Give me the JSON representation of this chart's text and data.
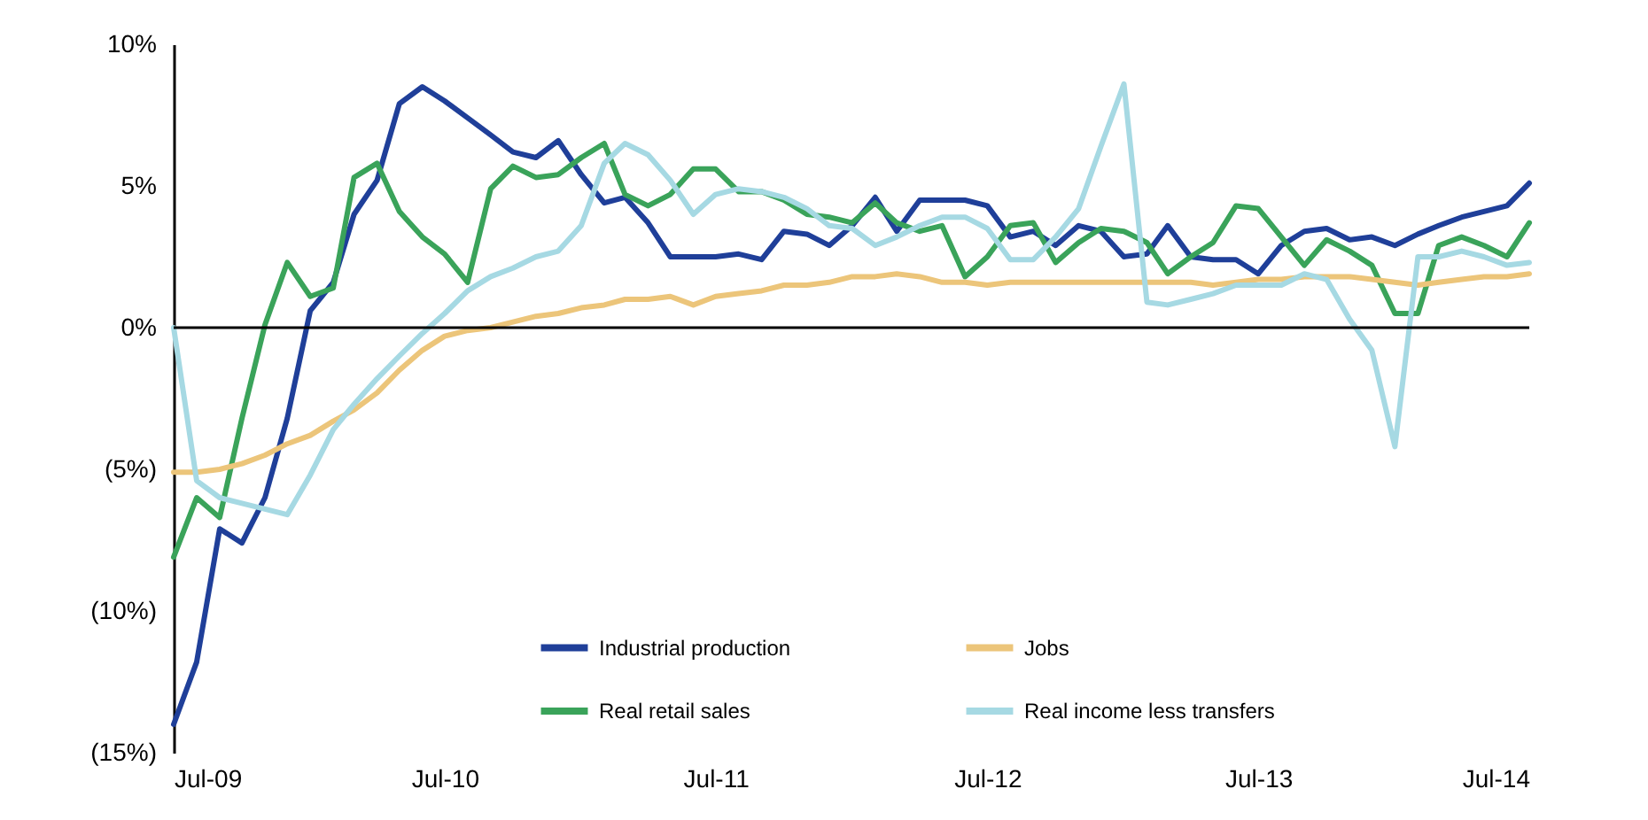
{
  "chart_data": {
    "type": "line",
    "x": [
      "2009-07",
      "2009-08",
      "2009-09",
      "2009-10",
      "2009-11",
      "2009-12",
      "2010-01",
      "2010-02",
      "2010-03",
      "2010-04",
      "2010-05",
      "2010-06",
      "2010-07",
      "2010-08",
      "2010-09",
      "2010-10",
      "2010-11",
      "2010-12",
      "2011-01",
      "2011-02",
      "2011-03",
      "2011-04",
      "2011-05",
      "2011-06",
      "2011-07",
      "2011-08",
      "2011-09",
      "2011-10",
      "2011-11",
      "2011-12",
      "2012-01",
      "2012-02",
      "2012-03",
      "2012-04",
      "2012-05",
      "2012-06",
      "2012-07",
      "2012-08",
      "2012-09",
      "2012-10",
      "2012-11",
      "2012-12",
      "2013-01",
      "2013-02",
      "2013-03",
      "2013-04",
      "2013-05",
      "2013-06",
      "2013-07",
      "2013-08",
      "2013-09",
      "2013-10",
      "2013-11",
      "2013-12",
      "2014-01",
      "2014-02",
      "2014-03",
      "2014-04",
      "2014-05",
      "2014-06",
      "2014-07"
    ],
    "series": [
      {
        "name": "Industrial production",
        "color": "#1f3f99",
        "values": [
          -14.0,
          -11.8,
          -7.1,
          -7.6,
          -6.0,
          -3.2,
          0.6,
          1.6,
          4.0,
          5.2,
          7.9,
          8.5,
          8.0,
          7.4,
          6.8,
          6.2,
          6.0,
          6.6,
          5.4,
          4.4,
          4.6,
          3.7,
          2.5,
          2.5,
          2.5,
          2.6,
          2.4,
          3.4,
          3.3,
          2.9,
          3.6,
          4.6,
          3.4,
          4.5,
          4.5,
          4.5,
          4.3,
          3.2,
          3.4,
          2.9,
          3.6,
          3.4,
          2.5,
          2.6,
          3.6,
          2.5,
          2.4,
          2.4,
          1.9,
          2.9,
          3.4,
          3.5,
          3.1,
          3.2,
          2.9,
          3.3,
          3.6,
          3.9,
          4.1,
          4.3,
          5.1
        ]
      },
      {
        "name": "Real retail sales",
        "color": "#3aa35a",
        "values": [
          -8.1,
          -6.0,
          -6.7,
          -3.2,
          0.1,
          2.3,
          1.1,
          1.4,
          5.3,
          5.8,
          4.1,
          3.2,
          2.6,
          1.6,
          4.9,
          5.7,
          5.3,
          5.4,
          6.0,
          6.5,
          4.7,
          4.3,
          4.7,
          5.6,
          5.6,
          4.8,
          4.8,
          4.5,
          4.0,
          3.9,
          3.7,
          4.4,
          3.7,
          3.4,
          3.6,
          1.8,
          2.5,
          3.6,
          3.7,
          2.3,
          3.0,
          3.5,
          3.4,
          3.0,
          1.9,
          2.5,
          3.0,
          4.3,
          4.2,
          3.2,
          2.2,
          3.1,
          2.7,
          2.2,
          0.5,
          0.5,
          2.9,
          3.2,
          2.9,
          2.5,
          3.7
        ]
      },
      {
        "name": "Jobs",
        "color": "#ecc57a",
        "values": [
          -5.1,
          -5.1,
          -5.0,
          -4.8,
          -4.5,
          -4.1,
          -3.8,
          -3.3,
          -2.9,
          -2.3,
          -1.5,
          -0.8,
          -0.3,
          -0.1,
          0.0,
          0.2,
          0.4,
          0.5,
          0.7,
          0.8,
          1.0,
          1.0,
          1.1,
          0.8,
          1.1,
          1.2,
          1.3,
          1.5,
          1.5,
          1.6,
          1.8,
          1.8,
          1.9,
          1.8,
          1.6,
          1.6,
          1.5,
          1.6,
          1.6,
          1.6,
          1.6,
          1.6,
          1.6,
          1.6,
          1.6,
          1.6,
          1.5,
          1.6,
          1.7,
          1.7,
          1.8,
          1.8,
          1.8,
          1.7,
          1.6,
          1.5,
          1.6,
          1.7,
          1.8,
          1.8,
          1.9
        ]
      },
      {
        "name": "Real income less transfers",
        "color": "#a6d9e3",
        "values": [
          0.0,
          -5.4,
          -6.0,
          -6.2,
          -6.4,
          -6.6,
          -5.2,
          -3.6,
          -2.7,
          -1.8,
          -1.0,
          -0.2,
          0.5,
          1.3,
          1.8,
          2.1,
          2.5,
          2.7,
          3.6,
          5.8,
          6.5,
          6.1,
          5.2,
          4.0,
          4.7,
          4.9,
          4.8,
          4.6,
          4.2,
          3.6,
          3.5,
          2.9,
          3.2,
          3.6,
          3.9,
          3.9,
          3.5,
          2.4,
          2.4,
          3.2,
          4.2,
          6.4,
          8.6,
          0.9,
          0.8,
          1.0,
          1.2,
          1.5,
          1.5,
          1.5,
          1.9,
          1.7,
          0.3,
          -0.8,
          -4.2,
          2.5,
          2.5,
          2.7,
          2.5,
          2.2,
          2.3
        ]
      }
    ],
    "xlim": [
      "2009-07",
      "2014-07"
    ],
    "xticks": [
      {
        "value": "2009-07",
        "label": "Jul-09"
      },
      {
        "value": "2010-07",
        "label": "Jul-10"
      },
      {
        "value": "2011-07",
        "label": "Jul-11"
      },
      {
        "value": "2012-07",
        "label": "Jul-12"
      },
      {
        "value": "2013-07",
        "label": "Jul-13"
      },
      {
        "value": "2014-07",
        "label": "Jul-14"
      }
    ],
    "ylim": [
      -15,
      10
    ],
    "yticks": [
      {
        "value": -15,
        "label": "(15%)"
      },
      {
        "value": -10,
        "label": "(10%)"
      },
      {
        "value": -5,
        "label": "(5%)"
      },
      {
        "value": 0,
        "label": "0%"
      },
      {
        "value": 5,
        "label": "5%"
      },
      {
        "value": 10,
        "label": "10%"
      }
    ],
    "ref_lines": [
      {
        "axis": "y",
        "value": 0,
        "label": null,
        "color": "#000000"
      }
    ],
    "legend": "bottom",
    "line_style": "solid",
    "marker": "none"
  }
}
